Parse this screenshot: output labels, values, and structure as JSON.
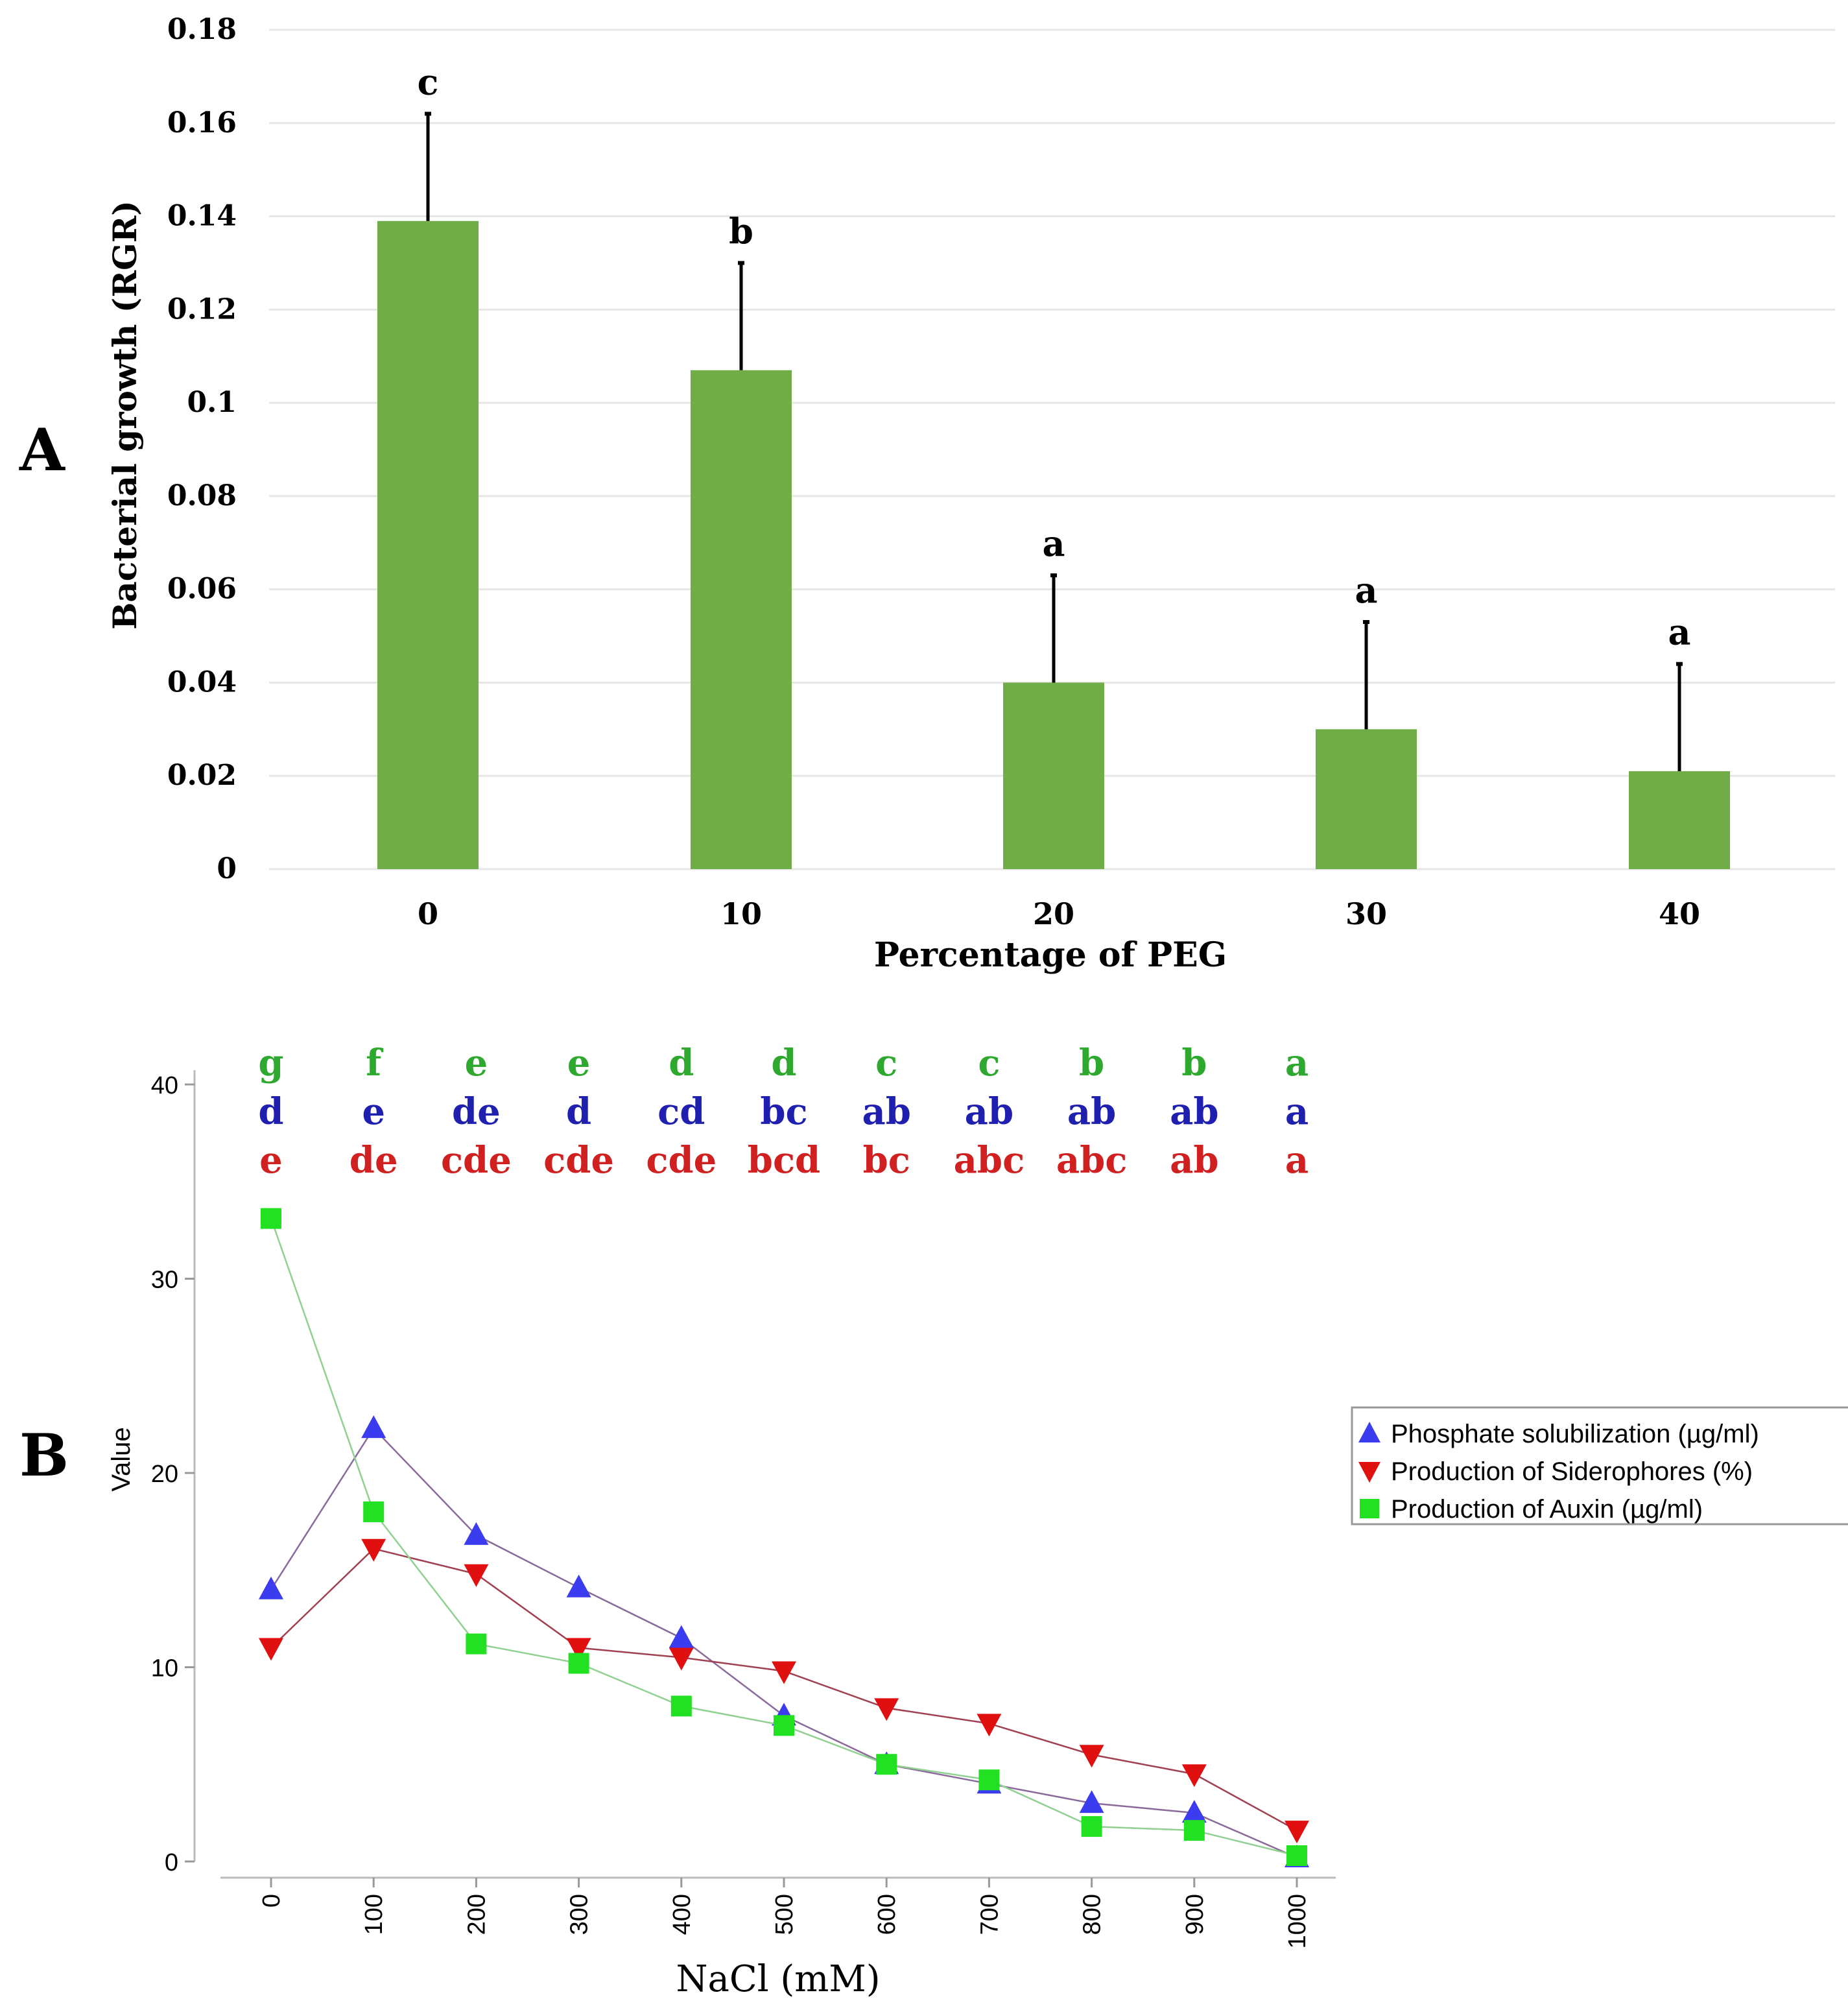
{
  "chart_data": [
    {
      "panel": "A",
      "type": "bar",
      "title": "",
      "xlabel": "Percentage of PEG",
      "ylabel": "Bacterial growth (RGR)",
      "categories": [
        "0",
        "10",
        "20",
        "30",
        "40"
      ],
      "values": [
        0.139,
        0.107,
        0.04,
        0.03,
        0.021
      ],
      "errors": [
        0.023,
        0.023,
        0.023,
        0.023,
        0.023
      ],
      "significance": [
        "c",
        "b",
        "a",
        "a",
        "a"
      ],
      "yticks": [
        "0",
        "0.02",
        "0.04",
        "0.06",
        "0.08",
        "0.1",
        "0.12",
        "0.14",
        "0.16",
        "0.18"
      ],
      "ylim": [
        0,
        0.18
      ],
      "grid": true,
      "bar_color": "#70ad47"
    },
    {
      "panel": "B",
      "type": "line",
      "xlabel": "NaCl (mM)",
      "ylabel": "Value",
      "x": [
        0,
        100,
        200,
        300,
        400,
        500,
        600,
        700,
        800,
        900,
        1000
      ],
      "xticks": [
        "0",
        "100",
        "200",
        "300",
        "400",
        "500",
        "600",
        "700",
        "800",
        "900",
        "1000"
      ],
      "yticks": [
        "0",
        "10",
        "20",
        "30",
        "40"
      ],
      "ylim": [
        0,
        40
      ],
      "legend": "right",
      "series": [
        {
          "name": "Phosphate solubilization (µg/ml)",
          "marker": "triangle-up",
          "color": "#3b3bf0",
          "line_color": "#8a6a9a",
          "values": [
            14,
            22.3,
            16.8,
            14.1,
            11.5,
            7.5,
            5,
            4,
            3,
            2.5,
            0.2
          ],
          "letters": [
            "d",
            "e",
            "de",
            "d",
            "cd",
            "bc",
            "ab",
            "ab",
            "ab",
            "ab",
            "a"
          ],
          "letter_color": "#1f1fb0"
        },
        {
          "name": "Production of Siderophores (%)",
          "marker": "triangle-down",
          "color": "#e01010",
          "line_color": "#a04050",
          "values": [
            11,
            16.1,
            14.8,
            11,
            10.5,
            9.8,
            7.9,
            7.1,
            5.5,
            4.5,
            1.6
          ],
          "letters": [
            "e",
            "de",
            "cde",
            "cde",
            "cde",
            "bcd",
            "bc",
            "abc",
            "abc",
            "ab",
            "a"
          ],
          "letter_color": "#d02020"
        },
        {
          "name": "Production of Auxin (µg/ml)",
          "marker": "square",
          "color": "#22e022",
          "line_color": "#90d090",
          "values": [
            33.1,
            18,
            11.2,
            10.2,
            8,
            7,
            5,
            4.2,
            1.8,
            1.6,
            0.3
          ],
          "letters": [
            "g",
            "f",
            "e",
            "e",
            "d",
            "d",
            "c",
            "c",
            "b",
            "b",
            "a"
          ],
          "letter_color": "#2fa82f"
        }
      ]
    }
  ],
  "panel_labels": [
    "A",
    "B"
  ]
}
